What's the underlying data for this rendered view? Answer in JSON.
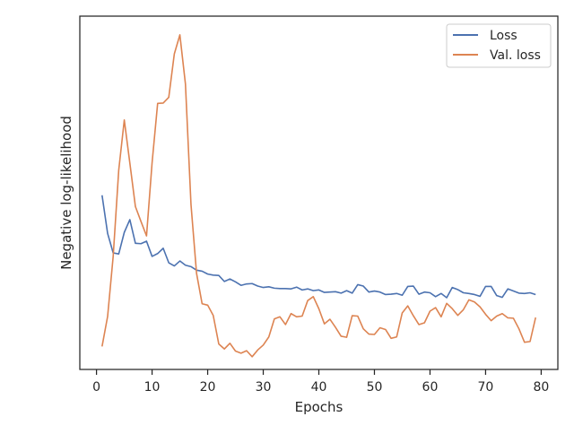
{
  "chart_data": {
    "type": "line",
    "title": "",
    "xlabel": "Epochs",
    "ylabel": "Negative log-likelihood",
    "xlim": [
      -3,
      83
    ],
    "ylim": [
      0,
      1
    ],
    "x_ticks": [
      0,
      10,
      20,
      30,
      40,
      50,
      60,
      70,
      80
    ],
    "y_ticks_shown": false,
    "grid": false,
    "legend_position": "top-right",
    "series": [
      {
        "name": "Loss",
        "color": "#4c72b0",
        "x": [
          1,
          2,
          3,
          4,
          5,
          6,
          7,
          8,
          9,
          10,
          11,
          12,
          13,
          14,
          15,
          16,
          17,
          18,
          19,
          20,
          21,
          22,
          23,
          24,
          25,
          26,
          27,
          28,
          29,
          30,
          31,
          32,
          33,
          34,
          35,
          36,
          37,
          38,
          39,
          40,
          41,
          42,
          43,
          44,
          45,
          46,
          47,
          48,
          49,
          50,
          51,
          52,
          53,
          54,
          55,
          56,
          57,
          58,
          59,
          60,
          61,
          62,
          63,
          64,
          65,
          66,
          67,
          68,
          69,
          70,
          71,
          72,
          73,
          74,
          75,
          76,
          77,
          78,
          79
        ],
        "values": [
          0.493,
          0.385,
          0.33,
          0.327,
          0.388,
          0.424,
          0.357,
          0.356,
          0.363,
          0.32,
          0.328,
          0.343,
          0.302,
          0.293,
          0.307,
          0.295,
          0.291,
          0.281,
          0.278,
          0.27,
          0.267,
          0.266,
          0.249,
          0.256,
          0.248,
          0.238,
          0.242,
          0.243,
          0.236,
          0.232,
          0.234,
          0.23,
          0.229,
          0.229,
          0.228,
          0.233,
          0.225,
          0.228,
          0.223,
          0.225,
          0.218,
          0.219,
          0.22,
          0.216,
          0.223,
          0.216,
          0.24,
          0.236,
          0.219,
          0.222,
          0.219,
          0.212,
          0.213,
          0.215,
          0.21,
          0.235,
          0.236,
          0.213,
          0.219,
          0.217,
          0.206,
          0.215,
          0.203,
          0.232,
          0.226,
          0.217,
          0.215,
          0.212,
          0.207,
          0.235,
          0.235,
          0.209,
          0.204,
          0.228,
          0.222,
          0.216,
          0.215,
          0.217,
          0.212
        ]
      },
      {
        "name": "Val. loss",
        "color": "#dd8452",
        "x": [
          1,
          2,
          3,
          4,
          5,
          6,
          7,
          8,
          9,
          10,
          11,
          12,
          13,
          14,
          15,
          16,
          17,
          18,
          19,
          20,
          21,
          22,
          23,
          24,
          25,
          26,
          27,
          28,
          29,
          30,
          31,
          32,
          33,
          34,
          35,
          36,
          37,
          38,
          39,
          40,
          41,
          42,
          43,
          44,
          45,
          46,
          47,
          48,
          49,
          50,
          51,
          52,
          53,
          54,
          55,
          56,
          57,
          58,
          59,
          60,
          61,
          62,
          63,
          64,
          65,
          66,
          67,
          68,
          69,
          70,
          71,
          72,
          73,
          74,
          75,
          76,
          77,
          78,
          79
        ],
        "values": [
          0.065,
          0.15,
          0.32,
          0.564,
          0.706,
          0.584,
          0.461,
          0.419,
          0.378,
          0.585,
          0.753,
          0.754,
          0.77,
          0.893,
          0.947,
          0.808,
          0.467,
          0.272,
          0.186,
          0.182,
          0.153,
          0.072,
          0.058,
          0.074,
          0.052,
          0.046,
          0.053,
          0.036,
          0.055,
          0.069,
          0.092,
          0.143,
          0.149,
          0.127,
          0.158,
          0.149,
          0.151,
          0.195,
          0.206,
          0.172,
          0.129,
          0.142,
          0.119,
          0.094,
          0.091,
          0.152,
          0.151,
          0.115,
          0.1,
          0.099,
          0.118,
          0.113,
          0.088,
          0.092,
          0.16,
          0.18,
          0.152,
          0.127,
          0.132,
          0.165,
          0.175,
          0.149,
          0.187,
          0.172,
          0.153,
          0.169,
          0.197,
          0.191,
          0.177,
          0.156,
          0.138,
          0.151,
          0.158,
          0.146,
          0.145,
          0.115,
          0.077,
          0.079,
          0.147
        ]
      }
    ]
  }
}
